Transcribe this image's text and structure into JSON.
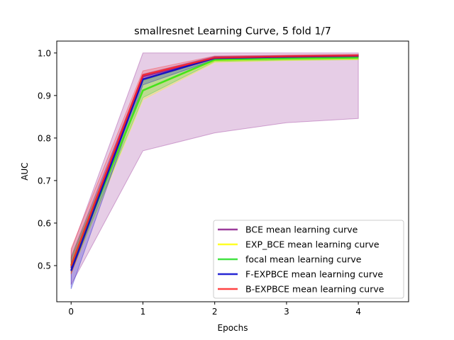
{
  "chart_data": {
    "type": "line",
    "title": "smallresnet Learning Curve, 5 fold 1/7",
    "xlabel": "Epochs",
    "ylabel": "AUC",
    "xlim": [
      -0.2,
      4.7
    ],
    "ylim": [
      0.415,
      1.028
    ],
    "x": [
      0,
      1,
      2,
      3,
      4
    ],
    "xticks": [
      0,
      1,
      2,
      3,
      4
    ],
    "yticks": [
      0.5,
      0.6,
      0.7,
      0.8,
      0.9,
      1.0
    ],
    "grid": false,
    "legend_position": "lower-right",
    "series": [
      {
        "name": "BCE mean learning curve",
        "color": "#8b1a8b",
        "values": [
          0.495,
          0.945,
          0.988,
          0.991,
          0.993
        ],
        "band_lower": [
          0.455,
          0.77,
          0.812,
          0.836,
          0.846
        ],
        "band_upper": [
          0.535,
          1.0,
          1.0,
          1.0,
          1.0
        ]
      },
      {
        "name": "EXP_BCE mean learning curve",
        "color": "#ffff00",
        "values": [
          0.5,
          0.912,
          0.983,
          0.986,
          0.988
        ],
        "band_lower": [
          0.48,
          0.89,
          0.978,
          0.982,
          0.984
        ],
        "band_upper": [
          0.52,
          0.935,
          0.988,
          0.99,
          0.992
        ]
      },
      {
        "name": "focal mean learning curve",
        "color": "#22dd22",
        "values": [
          0.5,
          0.912,
          0.984,
          0.987,
          0.989
        ],
        "band_lower": [
          0.485,
          0.895,
          0.98,
          0.983,
          0.985
        ],
        "band_upper": [
          0.515,
          0.935,
          0.99,
          0.992,
          0.994
        ]
      },
      {
        "name": "F-EXPBCE mean learning curve",
        "color": "#0000cc",
        "values": [
          0.488,
          0.938,
          0.988,
          0.991,
          0.993
        ],
        "band_lower": [
          0.445,
          0.925,
          0.984,
          0.988,
          0.99
        ],
        "band_upper": [
          0.52,
          0.95,
          0.992,
          0.994,
          0.996
        ]
      },
      {
        "name": "B-EXPBCE mean learning curve",
        "color": "#ff2222",
        "values": [
          0.5,
          0.948,
          0.989,
          0.992,
          0.994
        ],
        "band_lower": [
          0.48,
          0.938,
          0.986,
          0.99,
          0.992
        ],
        "band_upper": [
          0.54,
          0.958,
          0.993,
          0.995,
          0.997
        ]
      }
    ]
  }
}
